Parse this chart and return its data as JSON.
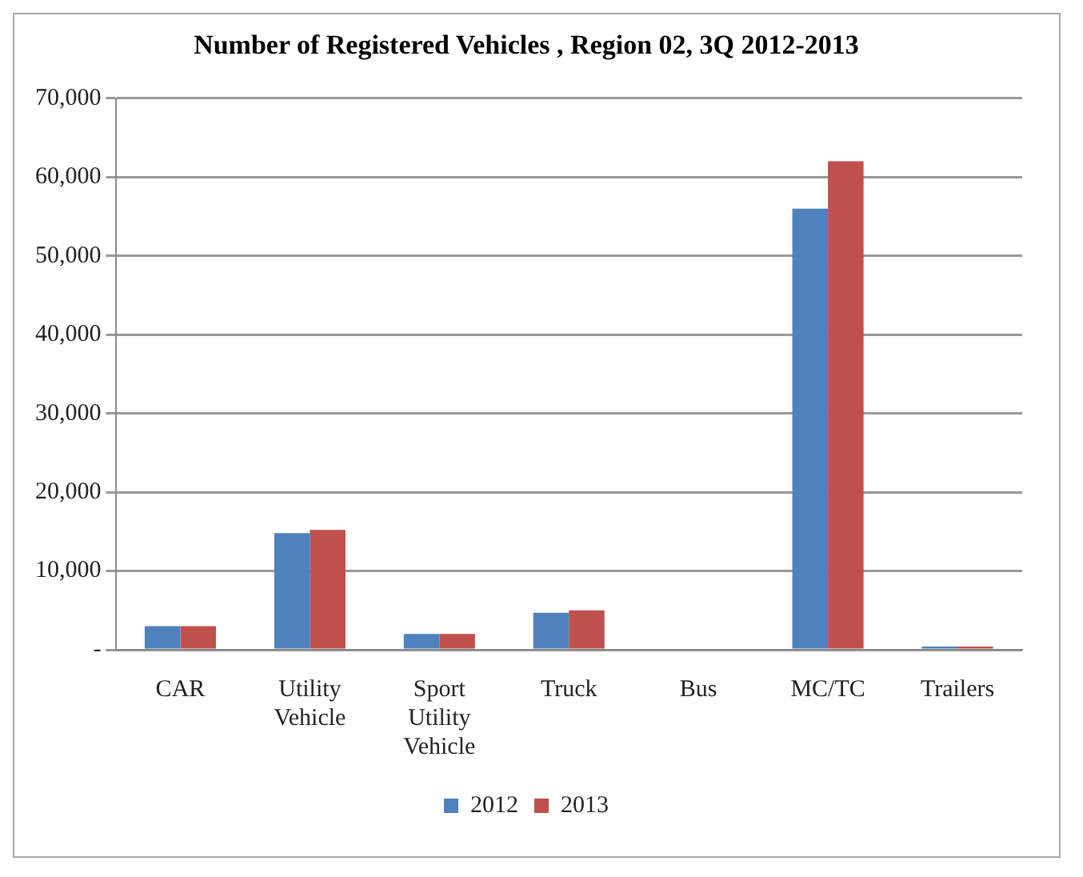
{
  "chart_data": {
    "type": "bar",
    "title": "Number of Registered Vehicles , Region 02, 3Q 2012-2013",
    "categories": [
      "CAR",
      "Utility Vehicle",
      "Sport Utility Vehicle",
      "Truck",
      "Bus",
      "MC/TC",
      "Trailers"
    ],
    "series": [
      {
        "name": "2012",
        "color": "#4f81bd",
        "values": [
          3000,
          14800,
          2000,
          4700,
          0,
          56000,
          400
        ]
      },
      {
        "name": "2013",
        "color": "#c0504d",
        "values": [
          3000,
          15200,
          2000,
          5000,
          0,
          62000,
          400
        ]
      }
    ],
    "ylim": [
      0,
      70000
    ],
    "yticks": [
      {
        "value": 0,
        "label": "-"
      },
      {
        "value": 10000,
        "label": "10,000"
      },
      {
        "value": 20000,
        "label": "20,000"
      },
      {
        "value": 30000,
        "label": "30,000"
      },
      {
        "value": 40000,
        "label": "40,000"
      },
      {
        "value": 50000,
        "label": "50,000"
      },
      {
        "value": 60000,
        "label": "60,000"
      },
      {
        "value": 70000,
        "label": "70,000"
      }
    ],
    "grid": "y",
    "legend": "bottom"
  }
}
